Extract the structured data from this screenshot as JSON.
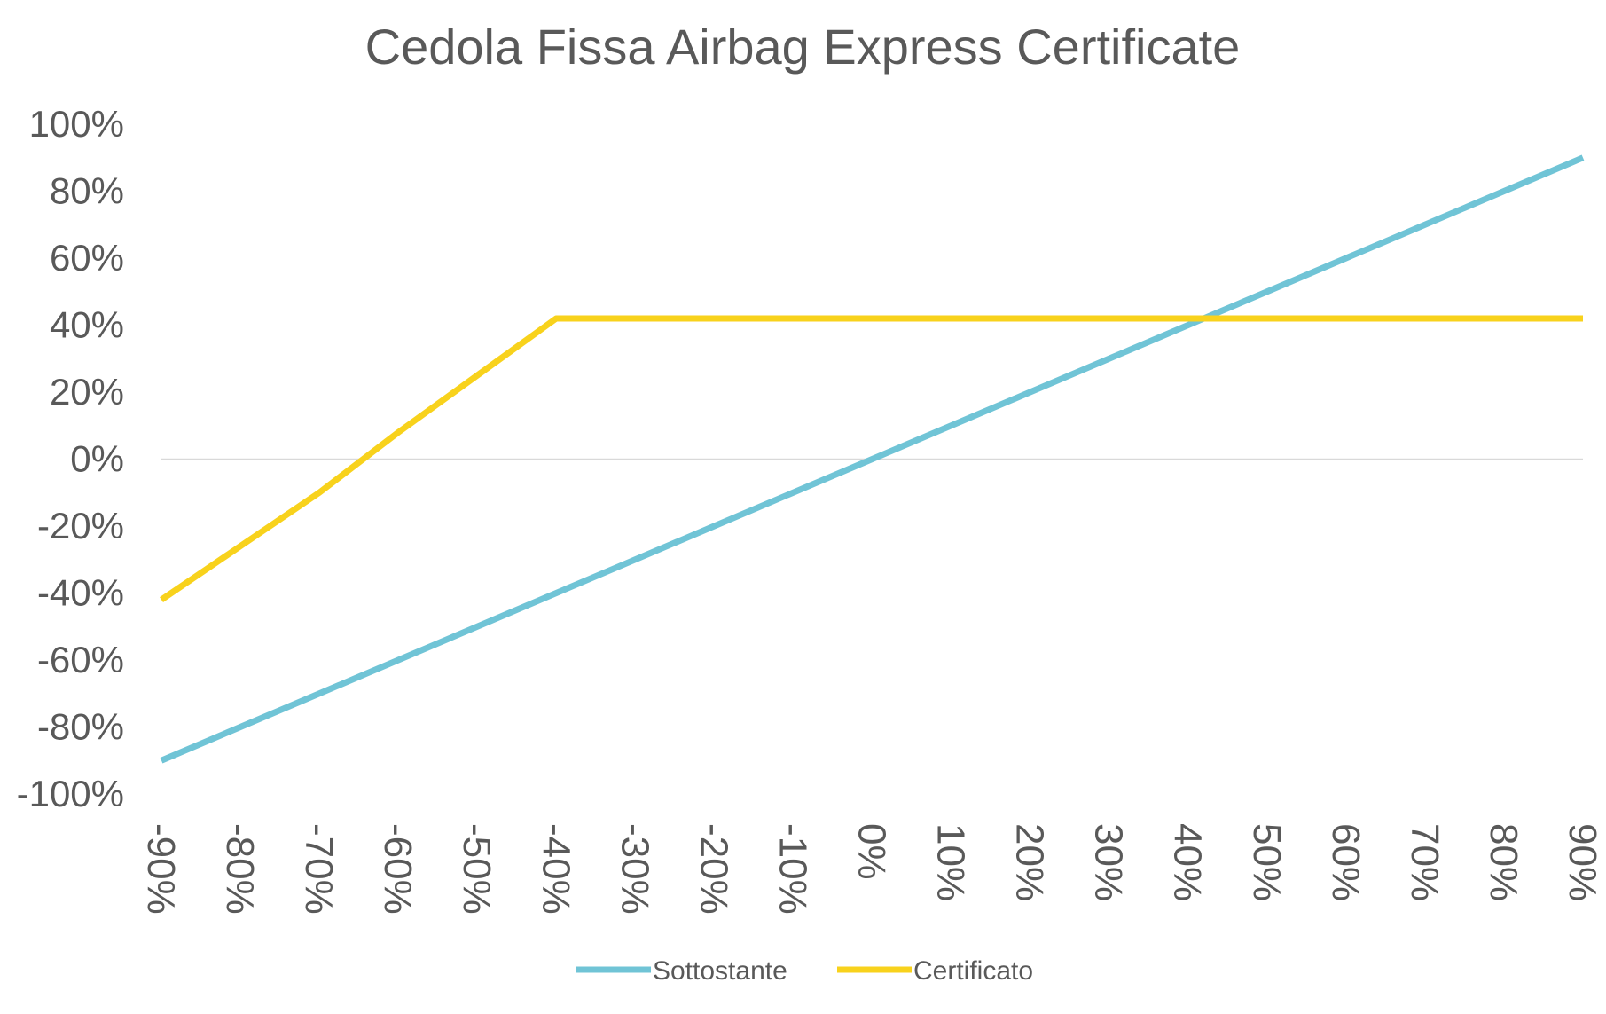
{
  "chart_data": {
    "type": "line",
    "title": "Cedola Fissa Airbag Express Certificate",
    "xlabel": "",
    "ylabel": "",
    "x": [
      "-90%",
      "-80%",
      "-70%",
      "-60%",
      "-50%",
      "-40%",
      "-30%",
      "-20%",
      "-10%",
      "0%",
      "10%",
      "20%",
      "30%",
      "40%",
      "50%",
      "60%",
      "70%",
      "80%",
      "90%"
    ],
    "x_values": [
      -90,
      -80,
      -70,
      -60,
      -50,
      -40,
      -30,
      -20,
      -10,
      0,
      10,
      20,
      30,
      40,
      50,
      60,
      70,
      80,
      90
    ],
    "y_ticks": [
      "100%",
      "80%",
      "60%",
      "40%",
      "20%",
      "0%",
      "-20%",
      "-40%",
      "-60%",
      "-80%",
      "-100%"
    ],
    "y_tick_values": [
      100,
      80,
      60,
      40,
      20,
      0,
      -20,
      -40,
      -60,
      -80,
      -100
    ],
    "ylim": [
      -100,
      100
    ],
    "xlim": [
      -90,
      90
    ],
    "grid": "zero-line only",
    "legend_position": "bottom",
    "series": [
      {
        "name": "Sottostante",
        "color": "#70C4D6",
        "values": [
          -90,
          -80,
          -70,
          -60,
          -50,
          -40,
          -30,
          -20,
          -10,
          0,
          10,
          20,
          30,
          40,
          50,
          60,
          70,
          80,
          90
        ]
      },
      {
        "name": "Certificato",
        "color": "#F8D21C",
        "values": [
          -42,
          -26,
          -10,
          8,
          25,
          42,
          42,
          42,
          42,
          42,
          42,
          42,
          42,
          42,
          42,
          42,
          42,
          42,
          42
        ]
      }
    ]
  }
}
